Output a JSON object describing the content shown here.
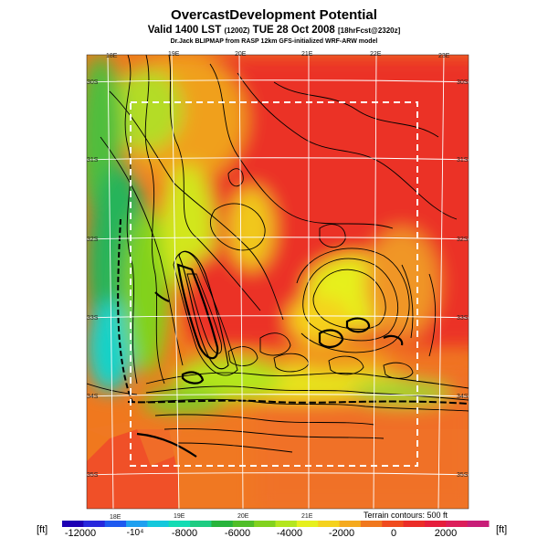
{
  "header": {
    "title": "OvercastDevelopment Potential",
    "valid_main": "Valid 1400 LST",
    "valid_z": "(1200Z)",
    "valid_date": "TUE 28 Oct 2008",
    "forecast_info": "[18hrFcst@2320z]",
    "credit": "Dr.Jack BLIPMAP from RASP 12km GFS-initialized WRF-ARW model"
  },
  "map": {
    "lon_labels_top": [
      "18E",
      "19E",
      "20E",
      "21E",
      "22E",
      "23E"
    ],
    "lon_labels_bottom": [
      "18E",
      "19E",
      "20E",
      "21E"
    ],
    "lat_labels_left": [
      "30S",
      "31S",
      "32S",
      "33S",
      "34S",
      "35S"
    ],
    "lat_labels_right": [
      "30S",
      "31S",
      "32S",
      "33S",
      "34S",
      "35S"
    ],
    "terrain_note": "Terrain contours: 500 ft"
  },
  "colorbar": {
    "unit": "[ft]",
    "ticks": [
      "-12000",
      "-10⁴",
      "-8000",
      "-6000",
      "-4000",
      "-2000",
      "0",
      "2000"
    ],
    "colors": [
      "#1e00b4",
      "#2828dc",
      "#1e5af0",
      "#1ea0f0",
      "#14c8dc",
      "#14dcb4",
      "#1ecc82",
      "#28b43c",
      "#50be28",
      "#82d21e",
      "#b4e61e",
      "#e6f01e",
      "#f5d21e",
      "#f5aa1e",
      "#f0781e",
      "#f04b1e",
      "#eb2d28",
      "#e61e3c",
      "#dc1e5a",
      "#c81e78"
    ]
  }
}
